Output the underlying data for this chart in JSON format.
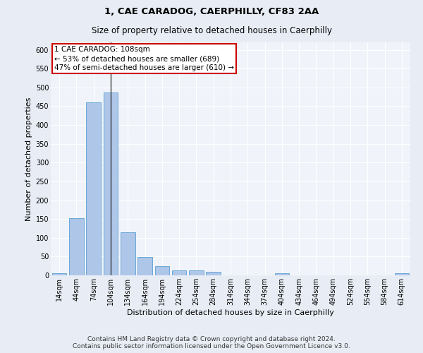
{
  "title": "1, CAE CARADOG, CAERPHILLY, CF83 2AA",
  "subtitle": "Size of property relative to detached houses in Caerphilly",
  "xlabel": "Distribution of detached houses by size in Caerphilly",
  "ylabel": "Number of detached properties",
  "categories": [
    "14sqm",
    "44sqm",
    "74sqm",
    "104sqm",
    "134sqm",
    "164sqm",
    "194sqm",
    "224sqm",
    "254sqm",
    "284sqm",
    "314sqm",
    "344sqm",
    "374sqm",
    "404sqm",
    "434sqm",
    "464sqm",
    "494sqm",
    "524sqm",
    "554sqm",
    "584sqm",
    "614sqm"
  ],
  "values": [
    5,
    152,
    460,
    487,
    115,
    49,
    25,
    14,
    13,
    9,
    0,
    0,
    0,
    6,
    0,
    0,
    0,
    0,
    0,
    0,
    5
  ],
  "bar_color": "#aec6e8",
  "bar_edge_color": "#5a9fd4",
  "annotation_line1": "1 CAE CARADOG: 108sqm",
  "annotation_line2": "← 53% of detached houses are smaller (689)",
  "annotation_line3": "47% of semi-detached houses are larger (610) →",
  "annotation_box_color": "#ffffff",
  "annotation_box_edge_color": "#cc0000",
  "ylim": [
    0,
    620
  ],
  "yticks": [
    0,
    50,
    100,
    150,
    200,
    250,
    300,
    350,
    400,
    450,
    500,
    550,
    600
  ],
  "footer_line1": "Contains HM Land Registry data © Crown copyright and database right 2024.",
  "footer_line2": "Contains public sector information licensed under the Open Government Licence v3.0.",
  "bg_color": "#e8edf5",
  "plot_bg_color": "#f0f4fa",
  "grid_color": "#ffffff",
  "title_fontsize": 9.5,
  "subtitle_fontsize": 8.5,
  "axis_label_fontsize": 8,
  "tick_fontsize": 7,
  "footer_fontsize": 6.5,
  "annotation_fontsize": 7.5
}
